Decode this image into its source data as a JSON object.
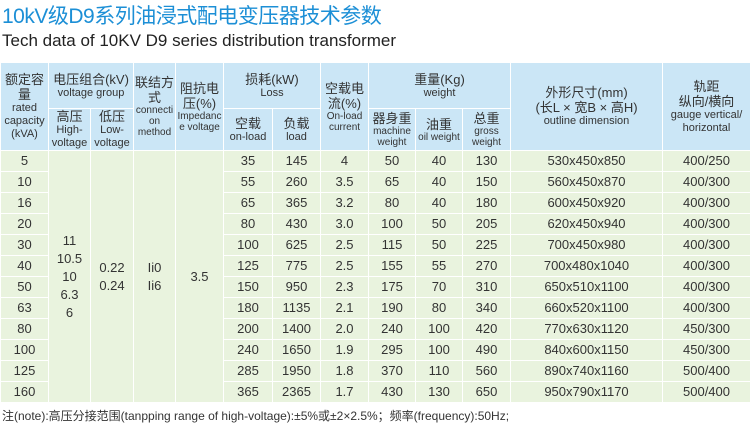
{
  "title_cn": "10kV级D9系列油浸式配电变压器技术参数",
  "title_en": "Tech data of 10KV D9 series distribution transformer",
  "headers": {
    "capacity": {
      "cn": "额定容量",
      "en": "rated capacity (kVA)"
    },
    "voltage": {
      "cn": "电压组合(kV)",
      "en": "voltage group"
    },
    "hv": {
      "cn": "高压",
      "en": "High-voltage"
    },
    "lv": {
      "cn": "低压",
      "en": "Low-voltage"
    },
    "conn": {
      "cn": "联结方式",
      "en": "connection method"
    },
    "imp": {
      "cn": "阻抗电压(%)",
      "en": "Impedance voltage"
    },
    "loss": {
      "cn": "损耗(kW)",
      "en": "Loss"
    },
    "noload": {
      "cn": "空载",
      "en": "on-load"
    },
    "load": {
      "cn": "负载",
      "en": "load"
    },
    "current": {
      "cn": "空载电流(%)",
      "en": "On-load current"
    },
    "weight": {
      "cn": "重量(Kg)",
      "en": "weight"
    },
    "machine": {
      "cn": "器身重",
      "en": "machine weight"
    },
    "oil": {
      "cn": "油重",
      "en": "oil weight"
    },
    "gross": {
      "cn": "总重",
      "en": "gross weight"
    },
    "dim": {
      "cn": "外形尺寸(mm)",
      "cn2": "(长L × 宽B × 高H)",
      "en": "outline dimension"
    },
    "gauge": {
      "cn": "轨距",
      "cn2": "纵向/横向",
      "en": "gauge vertical/ horizontal"
    }
  },
  "merged": {
    "hv": [
      "11",
      "10.5",
      "10",
      "6.3",
      "6"
    ],
    "lv": [
      "0.22",
      "0.24"
    ],
    "conn": [
      "Ii0",
      "Ii6"
    ],
    "imp": "3.5"
  },
  "rows": [
    [
      "5",
      "35",
      "145",
      "4",
      "50",
      "40",
      "130",
      "530x450x850",
      "400/250"
    ],
    [
      "10",
      "55",
      "260",
      "3.5",
      "65",
      "40",
      "150",
      "560x450x870",
      "400/300"
    ],
    [
      "16",
      "65",
      "365",
      "3.2",
      "80",
      "40",
      "180",
      "600x450x920",
      "400/300"
    ],
    [
      "20",
      "80",
      "430",
      "3.0",
      "100",
      "50",
      "205",
      "620x450x940",
      "400/300"
    ],
    [
      "30",
      "100",
      "625",
      "2.5",
      "115",
      "50",
      "225",
      "700x450x980",
      "400/300"
    ],
    [
      "40",
      "125",
      "775",
      "2.5",
      "155",
      "55",
      "270",
      "700x480x1040",
      "400/300"
    ],
    [
      "50",
      "150",
      "950",
      "2.3",
      "175",
      "70",
      "310",
      "650x510x1100",
      "400/300"
    ],
    [
      "63",
      "180",
      "1135",
      "2.1",
      "190",
      "80",
      "340",
      "660x520x1100",
      "400/300"
    ],
    [
      "80",
      "200",
      "1400",
      "2.0",
      "240",
      "100",
      "420",
      "770x630x1120",
      "450/300"
    ],
    [
      "100",
      "240",
      "1650",
      "1.9",
      "295",
      "100",
      "490",
      "840x600x1150",
      "450/300"
    ],
    [
      "125",
      "285",
      "1950",
      "1.8",
      "370",
      "110",
      "560",
      "890x740x1160",
      "500/400"
    ],
    [
      "160",
      "365",
      "2365",
      "1.7",
      "430",
      "130",
      "650",
      "950x790x1170",
      "500/400"
    ]
  ],
  "note": "注(note):高压分接范围(tanpping range of high-voltage):±5%或±2×2.5%；频率(frequency):50Hz;"
}
